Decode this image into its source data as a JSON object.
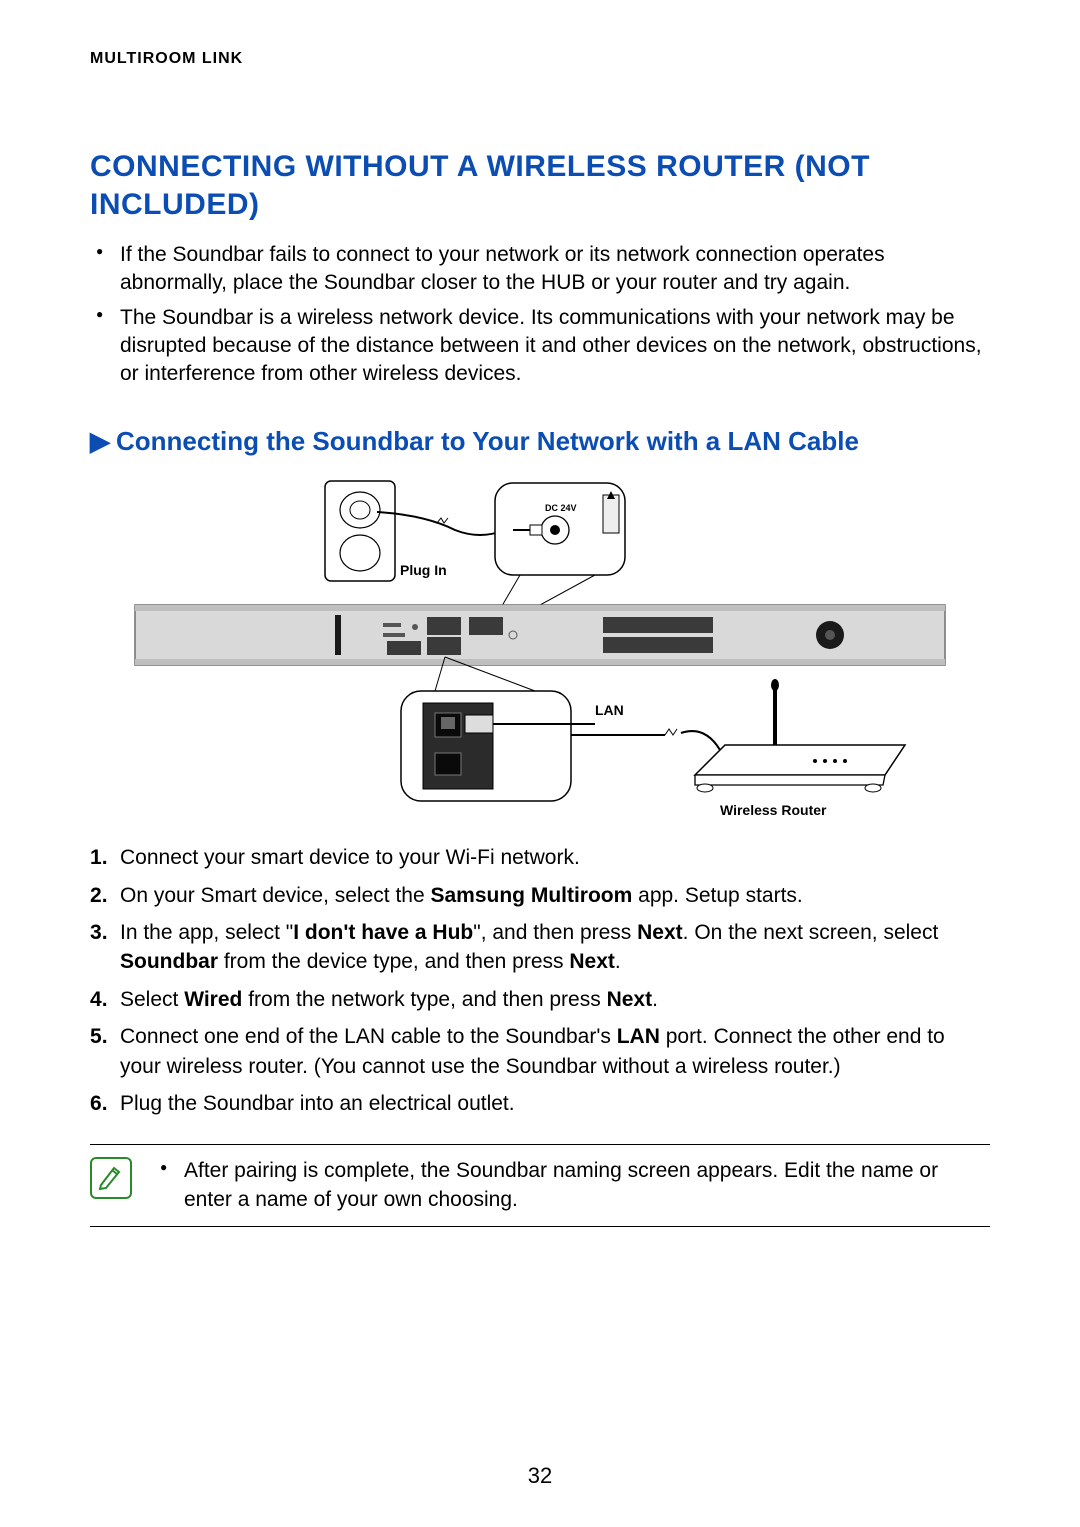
{
  "header": {
    "section_label": "MULTIROOM LINK"
  },
  "title": "CONNECTING WITHOUT A WIRELESS ROUTER (NOT INCLUDED)",
  "bullets": [
    "If the Soundbar fails to connect to your network or its network connection operates abnormally, place the Soundbar closer to the HUB or your router and try again.",
    "The Soundbar is a wireless network device. Its communications with your network may be disrupted because of the distance between it and other devices on the network, obstructions, or interference from other wireless devices."
  ],
  "subheading": {
    "arrow": "▶",
    "text": "Connecting the Soundbar to Your Network with a LAN Cable"
  },
  "diagram": {
    "labels": {
      "plug_in": "Plug In",
      "dc24v": "DC 24V",
      "lan": "LAN",
      "wireless_router": "Wireless Router"
    },
    "colors": {
      "outline": "#000000",
      "soundbar_fill": "#d9d9d9",
      "soundbar_stroke": "#6f6f6f",
      "panel_fill": "#3a3a3a",
      "label_font": "#000000",
      "background": "#ffffff"
    },
    "label_font_size_small": 11,
    "label_font_size": 14
  },
  "steps_html": [
    "Connect your smart device to your Wi-Fi network.",
    "On your Smart device, select the <b>Samsung Multiroom</b> app. Setup starts.",
    "In the app, select \"<b>I don't have a Hub</b>\", and then press <b>Next</b>. On the next screen, select <b>Soundbar</b> from the device type, and then press <b>Next</b>.",
    "Select <b>Wired</b> from the network type, and then press <b>Next</b>.",
    "Connect one end of the LAN cable to the Soundbar's <b>LAN</b> port. Connect the other end to your wireless router. (You cannot use the Soundbar without a wireless router.)",
    "Plug the Soundbar into an electrical outlet."
  ],
  "note": "After pairing is complete, the Soundbar naming screen appears. Edit the name or enter a name of your own choosing.",
  "page_number": "32",
  "colors": {
    "heading_blue": "#0b4db3",
    "note_icon_green": "#2a8a2a",
    "text": "#000000",
    "background": "#ffffff"
  },
  "typography": {
    "header_label_pt": 16,
    "title_pt": 30,
    "subheading_pt": 26,
    "body_pt": 21,
    "pagenum_pt": 22
  }
}
